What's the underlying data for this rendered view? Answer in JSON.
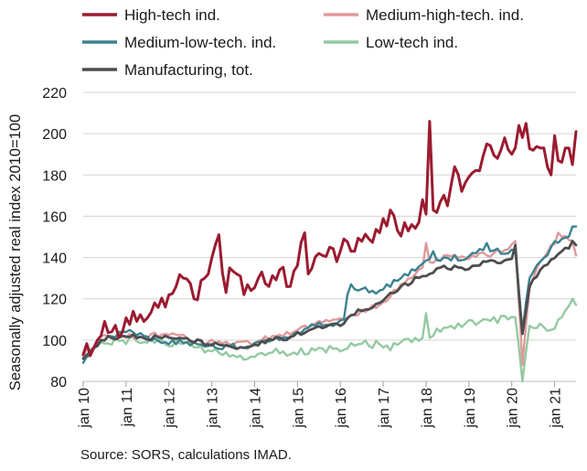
{
  "source_note": "Source: SORS, calculations IMAD.",
  "chart_data": {
    "type": "line",
    "ylabel": "Seasonally adjusted real index 2010=100",
    "xlabel": "",
    "ylim": [
      80,
      220
    ],
    "yticks": [
      80,
      100,
      120,
      140,
      160,
      180,
      200,
      220
    ],
    "x_start": "2010-01",
    "x_end": "2021-07",
    "xticks": [
      "jan 10",
      "jan 11",
      "jan 12",
      "jan 13",
      "jan 14",
      "jan 15",
      "jan 16",
      "jan 17",
      "jan 18",
      "jan 19",
      "jan 20",
      "jan 21"
    ],
    "grid": "horizontal",
    "legend_position": "top",
    "series": [
      {
        "name": "High-tech ind.",
        "color": "#9b1b30",
        "anchors": [
          [
            "2010-01",
            93
          ],
          [
            "2010-05",
            100
          ],
          [
            "2010-07",
            109
          ],
          [
            "2010-09",
            104
          ],
          [
            "2010-12",
            104
          ],
          [
            "2011-03",
            114
          ],
          [
            "2011-06",
            109
          ],
          [
            "2011-09",
            118
          ],
          [
            "2011-12",
            116
          ],
          [
            "2012-03",
            126
          ],
          [
            "2012-05",
            130
          ],
          [
            "2012-08",
            120
          ],
          [
            "2012-11",
            130
          ],
          [
            "2013-03",
            149
          ],
          [
            "2013-05",
            123
          ],
          [
            "2013-06",
            135
          ],
          [
            "2013-08",
            132
          ],
          [
            "2013-10",
            122
          ],
          [
            "2013-12",
            124
          ],
          [
            "2014-03",
            133
          ],
          [
            "2014-05",
            126
          ],
          [
            "2014-08",
            134
          ],
          [
            "2014-11",
            126
          ],
          [
            "2015-01",
            136
          ],
          [
            "2015-03",
            152
          ],
          [
            "2015-04",
            132
          ],
          [
            "2015-07",
            142
          ],
          [
            "2015-10",
            145
          ],
          [
            "2015-12",
            138
          ],
          [
            "2016-02",
            149
          ],
          [
            "2016-04",
            143
          ],
          [
            "2016-09",
            149
          ],
          [
            "2016-12",
            152
          ],
          [
            "2017-03",
            163
          ],
          [
            "2017-05",
            153
          ],
          [
            "2017-09",
            156
          ],
          [
            "2017-11",
            157
          ],
          [
            "2017-12",
            168
          ],
          [
            "2018-01",
            161
          ],
          [
            "2018-02",
            206
          ],
          [
            "2018-03",
            163
          ],
          [
            "2018-05",
            167
          ],
          [
            "2018-07",
            165
          ],
          [
            "2018-09",
            183
          ],
          [
            "2018-11",
            172
          ],
          [
            "2019-01",
            179
          ],
          [
            "2019-04",
            182
          ],
          [
            "2019-06",
            194
          ],
          [
            "2019-09",
            188
          ],
          [
            "2019-11",
            196
          ],
          [
            "2020-01",
            190
          ],
          [
            "2020-03",
            204
          ],
          [
            "2020-05",
            200
          ],
          [
            "2020-07",
            192
          ],
          [
            "2020-09",
            193
          ],
          [
            "2020-12",
            181
          ],
          [
            "2021-02",
            187
          ],
          [
            "2021-04",
            193
          ],
          [
            "2021-06",
            185
          ],
          [
            "2021-07",
            201
          ]
        ],
        "spikes": [
          [
            "2013-03",
            151
          ],
          [
            "2015-03",
            152
          ],
          [
            "2016-05",
            143
          ],
          [
            "2017-03",
            163
          ],
          [
            "2017-12",
            168
          ],
          [
            "2018-02",
            206
          ],
          [
            "2018-09",
            184
          ],
          [
            "2019-06",
            195
          ],
          [
            "2019-11",
            198
          ],
          [
            "2020-03",
            204
          ],
          [
            "2020-05",
            205
          ],
          [
            "2020-12",
            180
          ],
          [
            "2021-01",
            199
          ],
          [
            "2021-05",
            193
          ]
        ]
      },
      {
        "name": "Medium-high-tech. ind.",
        "color": "#e0999b",
        "anchors": [
          [
            "2010-01",
            92
          ],
          [
            "2010-06",
            102
          ],
          [
            "2010-12",
            102
          ],
          [
            "2011-06",
            101
          ],
          [
            "2011-12",
            103
          ],
          [
            "2012-06",
            101
          ],
          [
            "2012-12",
            99
          ],
          [
            "2013-06",
            98
          ],
          [
            "2013-12",
            98
          ],
          [
            "2014-06",
            102
          ],
          [
            "2014-12",
            104
          ],
          [
            "2015-06",
            108
          ],
          [
            "2015-12",
            110
          ],
          [
            "2016-02",
            110
          ],
          [
            "2016-05",
            112
          ],
          [
            "2016-12",
            117
          ],
          [
            "2017-06",
            127
          ],
          [
            "2017-12",
            135
          ],
          [
            "2018-06",
            141
          ],
          [
            "2018-12",
            140
          ],
          [
            "2019-06",
            141
          ],
          [
            "2019-12",
            144
          ],
          [
            "2020-02",
            147
          ],
          [
            "2020-04",
            90
          ],
          [
            "2020-06",
            125
          ],
          [
            "2020-09",
            138
          ],
          [
            "2020-12",
            146
          ],
          [
            "2021-03",
            150
          ],
          [
            "2021-06",
            147
          ],
          [
            "2021-07",
            141
          ]
        ],
        "spikes": [
          [
            "2018-01",
            147
          ],
          [
            "2020-02",
            148
          ],
          [
            "2020-04",
            88
          ],
          [
            "2021-02",
            152
          ],
          [
            "2021-06",
            148
          ]
        ]
      },
      {
        "name": "Medium-low-tech. ind.",
        "color": "#3b8290",
        "anchors": [
          [
            "2010-01",
            89
          ],
          [
            "2010-06",
            100
          ],
          [
            "2010-12",
            104
          ],
          [
            "2011-06",
            102
          ],
          [
            "2011-12",
            99
          ],
          [
            "2012-06",
            99
          ],
          [
            "2012-12",
            97
          ],
          [
            "2013-06",
            97
          ],
          [
            "2013-12",
            97
          ],
          [
            "2014-06",
            100
          ],
          [
            "2014-12",
            103
          ],
          [
            "2015-06",
            107
          ],
          [
            "2015-12",
            108
          ],
          [
            "2016-02",
            110
          ],
          [
            "2016-03",
            122
          ],
          [
            "2016-06",
            124
          ],
          [
            "2016-12",
            124
          ],
          [
            "2017-06",
            130
          ],
          [
            "2017-12",
            137
          ],
          [
            "2018-06",
            140
          ],
          [
            "2018-12",
            139
          ],
          [
            "2019-06",
            145
          ],
          [
            "2019-12",
            142
          ],
          [
            "2020-02",
            143
          ],
          [
            "2020-04",
            106
          ],
          [
            "2020-06",
            130
          ],
          [
            "2020-09",
            138
          ],
          [
            "2020-12",
            145
          ],
          [
            "2021-03",
            149
          ],
          [
            "2021-06",
            152
          ],
          [
            "2021-07",
            155
          ]
        ],
        "spikes": [
          [
            "2016-04",
            127
          ],
          [
            "2018-03",
            143
          ],
          [
            "2019-06",
            147
          ],
          [
            "2020-04",
            104
          ],
          [
            "2021-06",
            155
          ]
        ]
      },
      {
        "name": "Low-tech ind.",
        "color": "#94c9a1",
        "anchors": [
          [
            "2010-01",
            93
          ],
          [
            "2010-06",
            99
          ],
          [
            "2010-12",
            100
          ],
          [
            "2011-06",
            99
          ],
          [
            "2011-12",
            98
          ],
          [
            "2012-06",
            99
          ],
          [
            "2012-12",
            95
          ],
          [
            "2013-06",
            92
          ],
          [
            "2013-12",
            92
          ],
          [
            "2014-06",
            94
          ],
          [
            "2014-12",
            94
          ],
          [
            "2015-06",
            95
          ],
          [
            "2015-12",
            96
          ],
          [
            "2016-06",
            98
          ],
          [
            "2016-12",
            98
          ],
          [
            "2017-06",
            99
          ],
          [
            "2017-12",
            101
          ],
          [
            "2018-06",
            106
          ],
          [
            "2018-12",
            108
          ],
          [
            "2019-06",
            110
          ],
          [
            "2019-12",
            110
          ],
          [
            "2020-02",
            111
          ],
          [
            "2020-04",
            80
          ],
          [
            "2020-06",
            107
          ],
          [
            "2020-09",
            108
          ],
          [
            "2020-12",
            105
          ],
          [
            "2021-03",
            111
          ],
          [
            "2021-06",
            118
          ],
          [
            "2021-07",
            117
          ]
        ],
        "spikes": [
          [
            "2017-03",
            95
          ],
          [
            "2018-01",
            113
          ],
          [
            "2020-04",
            80
          ],
          [
            "2021-06",
            120
          ]
        ]
      },
      {
        "name": "Manufacturing, tot.",
        "color": "#4d4d4f",
        "anchors": [
          [
            "2010-01",
            91
          ],
          [
            "2010-06",
            100
          ],
          [
            "2010-12",
            102
          ],
          [
            "2011-06",
            101
          ],
          [
            "2011-12",
            102
          ],
          [
            "2012-06",
            101
          ],
          [
            "2012-12",
            98
          ],
          [
            "2013-06",
            97
          ],
          [
            "2013-12",
            97
          ],
          [
            "2014-06",
            100
          ],
          [
            "2014-12",
            102
          ],
          [
            "2015-06",
            106
          ],
          [
            "2015-12",
            108
          ],
          [
            "2016-02",
            108
          ],
          [
            "2016-04",
            112
          ],
          [
            "2016-12",
            118
          ],
          [
            "2017-06",
            126
          ],
          [
            "2017-12",
            131
          ],
          [
            "2018-06",
            136
          ],
          [
            "2018-12",
            134
          ],
          [
            "2019-06",
            138
          ],
          [
            "2019-12",
            139
          ],
          [
            "2020-02",
            141
          ],
          [
            "2020-04",
            104
          ],
          [
            "2020-06",
            126
          ],
          [
            "2020-09",
            134
          ],
          [
            "2020-12",
            139
          ],
          [
            "2021-03",
            143
          ],
          [
            "2021-06",
            147
          ],
          [
            "2021-07",
            146
          ]
        ],
        "spikes": [
          [
            "2020-02",
            146
          ],
          [
            "2020-04",
            103
          ],
          [
            "2021-06",
            148
          ]
        ]
      }
    ]
  }
}
